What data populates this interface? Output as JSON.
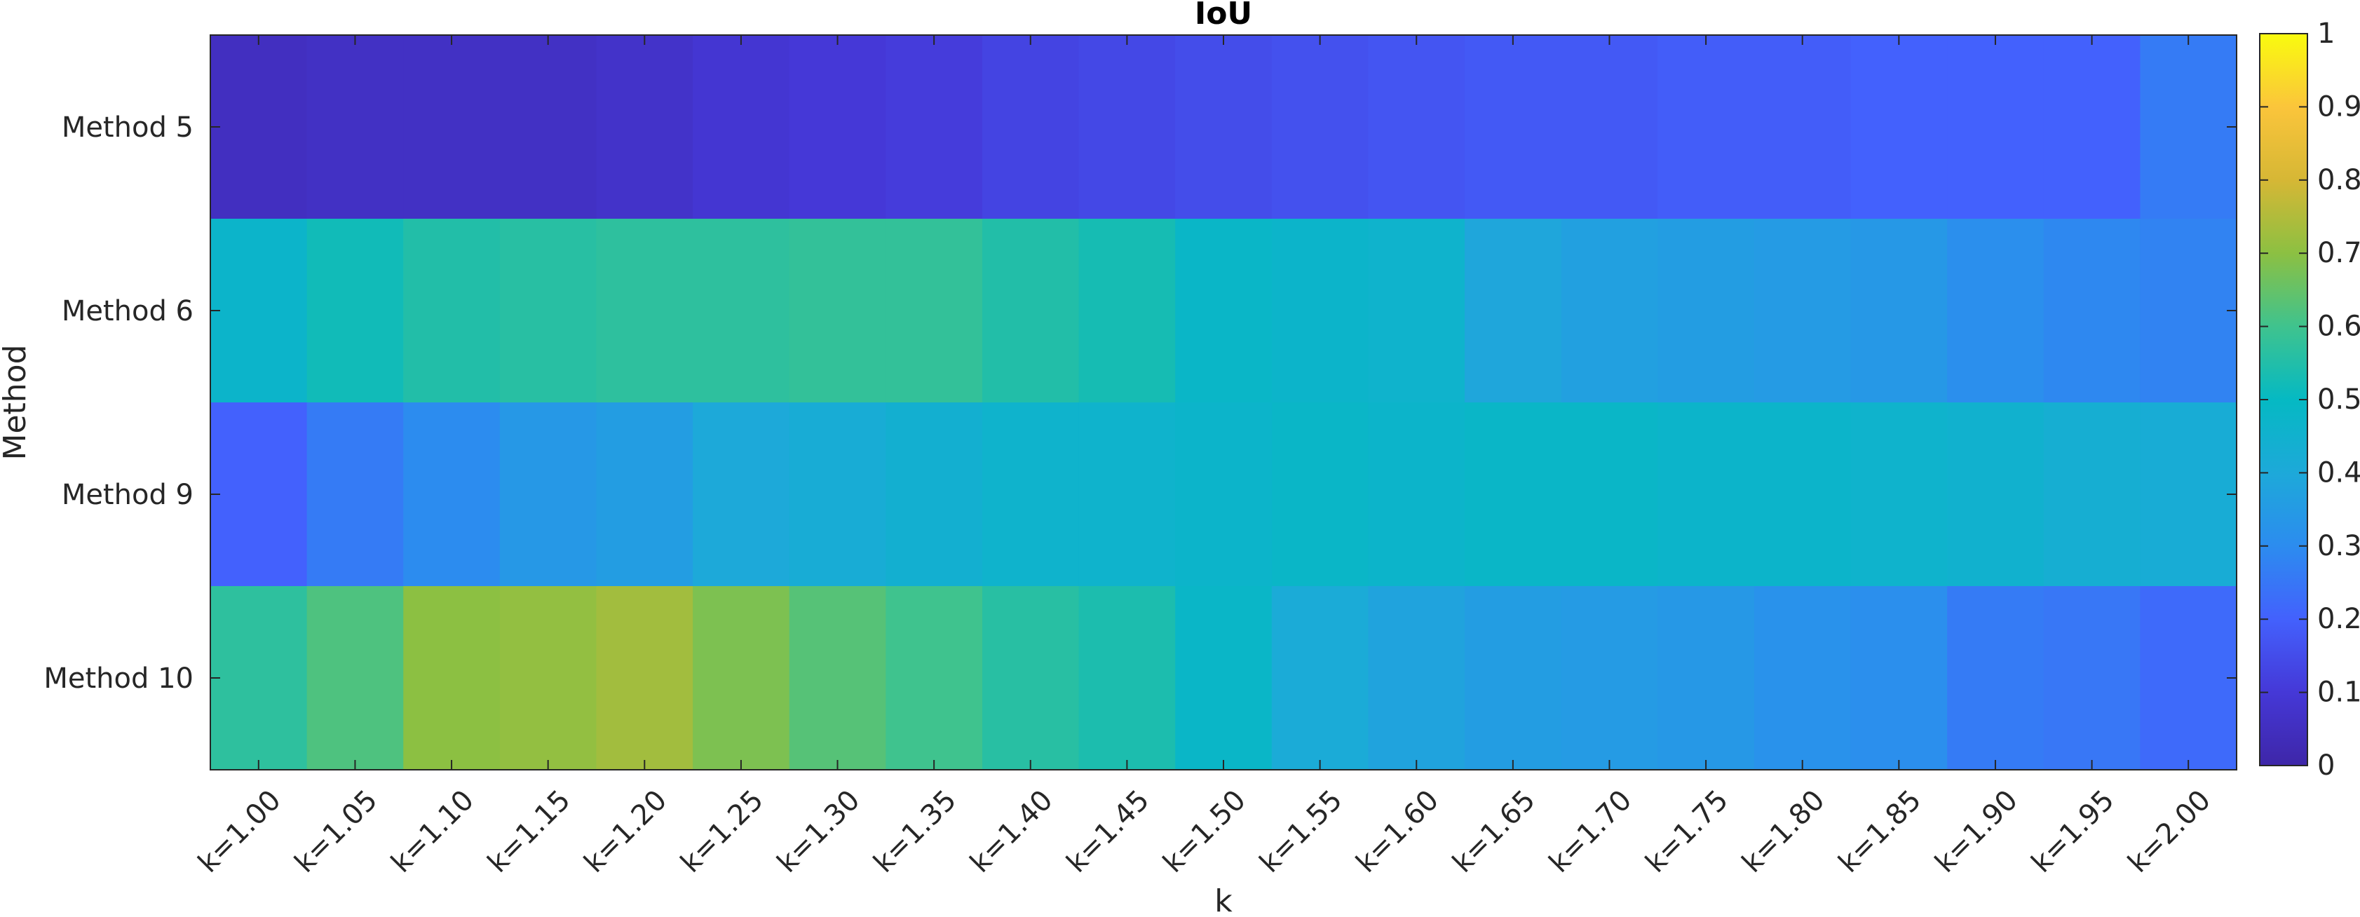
{
  "chart_data": {
    "type": "heatmap",
    "title": "IoU",
    "xlabel": "k",
    "ylabel": "Method",
    "x_categories": [
      "k=1.00",
      "k=1.05",
      "k=1.10",
      "k=1.15",
      "k=1.20",
      "k=1.25",
      "k=1.30",
      "k=1.35",
      "k=1.40",
      "k=1.45",
      "k=1.50",
      "k=1.55",
      "k=1.60",
      "k=1.65",
      "k=1.70",
      "k=1.75",
      "k=1.80",
      "k=1.85",
      "k=1.90",
      "k=1.95",
      "k=2.00"
    ],
    "y_categories": [
      "Method 5",
      "Method 6",
      "Method 9",
      "Method 10"
    ],
    "values": [
      [
        0.05,
        0.06,
        0.06,
        0.06,
        0.07,
        0.09,
        0.1,
        0.11,
        0.13,
        0.14,
        0.15,
        0.16,
        0.17,
        0.18,
        0.18,
        0.19,
        0.19,
        0.2,
        0.2,
        0.2,
        0.26
      ],
      [
        0.47,
        0.52,
        0.55,
        0.56,
        0.57,
        0.57,
        0.58,
        0.58,
        0.55,
        0.53,
        0.48,
        0.47,
        0.46,
        0.39,
        0.37,
        0.36,
        0.35,
        0.34,
        0.31,
        0.29,
        0.28
      ],
      [
        0.2,
        0.26,
        0.3,
        0.34,
        0.36,
        0.4,
        0.42,
        0.44,
        0.46,
        0.46,
        0.47,
        0.48,
        0.47,
        0.48,
        0.48,
        0.47,
        0.47,
        0.46,
        0.45,
        0.43,
        0.42
      ],
      [
        0.57,
        0.62,
        0.7,
        0.71,
        0.73,
        0.68,
        0.63,
        0.6,
        0.56,
        0.54,
        0.48,
        0.41,
        0.38,
        0.36,
        0.35,
        0.34,
        0.32,
        0.31,
        0.26,
        0.25,
        0.22
      ]
    ],
    "colorbar": {
      "colormap": "parula",
      "range": [
        0,
        1
      ],
      "ticks": [
        "0",
        "0.1",
        "0.2",
        "0.3",
        "0.4",
        "0.5",
        "0.6",
        "0.7",
        "0.8",
        "0.9",
        "1"
      ]
    },
    "grid": false
  }
}
